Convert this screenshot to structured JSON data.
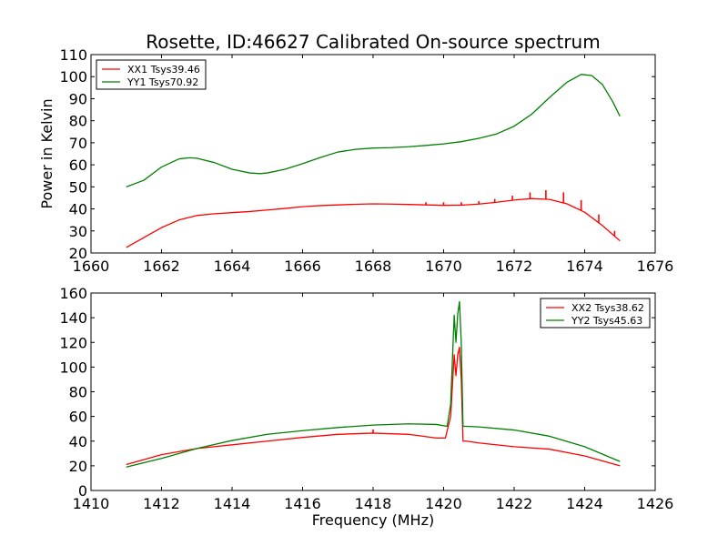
{
  "chart_data": [
    {
      "type": "line",
      "title": "Rosette, ID:46627 Calibrated On-source spectrum",
      "xlabel": "",
      "ylabel": "Power in Kelvin",
      "xlim": [
        1660,
        1676
      ],
      "ylim": [
        20,
        110
      ],
      "xticks": [
        1660,
        1662,
        1664,
        1666,
        1668,
        1670,
        1672,
        1674,
        1676
      ],
      "yticks": [
        20,
        30,
        40,
        50,
        60,
        70,
        80,
        90,
        100,
        110
      ],
      "grid": false,
      "legend_position": "top-left",
      "series": [
        {
          "name": "XX1 Tsys39.46",
          "color": "#ff0000",
          "x": [
            1661.0,
            1661.5,
            1662.0,
            1662.5,
            1663.0,
            1663.5,
            1664.0,
            1664.5,
            1665.0,
            1665.5,
            1666.0,
            1666.5,
            1667.0,
            1667.5,
            1668.0,
            1668.5,
            1669.0,
            1669.5,
            1670.0,
            1670.5,
            1671.0,
            1671.5,
            1672.0,
            1672.5,
            1673.0,
            1673.5,
            1674.0,
            1674.5,
            1675.0
          ],
          "y": [
            22.5,
            27,
            31.5,
            35,
            37,
            37.8,
            38.3,
            38.8,
            39.5,
            40.2,
            41,
            41.5,
            41.8,
            42.1,
            42.3,
            42.2,
            42,
            41.8,
            41.6,
            41.7,
            42.2,
            43,
            44,
            44.7,
            44.3,
            42.3,
            38.5,
            32.5,
            25.5
          ],
          "spikes": [
            {
              "x": 1669.5,
              "y": 43
            },
            {
              "x": 1670.0,
              "y": 43
            },
            {
              "x": 1670.5,
              "y": 43
            },
            {
              "x": 1671.0,
              "y": 43.5
            },
            {
              "x": 1671.45,
              "y": 44.5
            },
            {
              "x": 1671.95,
              "y": 46
            },
            {
              "x": 1672.45,
              "y": 47.5
            },
            {
              "x": 1672.9,
              "y": 48.5
            },
            {
              "x": 1673.4,
              "y": 47.5
            },
            {
              "x": 1673.9,
              "y": 44
            },
            {
              "x": 1674.4,
              "y": 37.5
            },
            {
              "x": 1674.85,
              "y": 30
            }
          ]
        },
        {
          "name": "YY1 Tsys70.92",
          "color": "#008000",
          "x": [
            1661.0,
            1661.5,
            1662.0,
            1662.5,
            1662.8,
            1663.0,
            1663.5,
            1664.0,
            1664.5,
            1664.8,
            1665.0,
            1665.5,
            1666.0,
            1666.5,
            1667.0,
            1667.5,
            1668.0,
            1668.5,
            1669.0,
            1669.5,
            1670.0,
            1670.5,
            1671.0,
            1671.5,
            1672.0,
            1672.5,
            1673.0,
            1673.5,
            1673.9,
            1674.2,
            1674.5,
            1674.8,
            1675.0
          ],
          "y": [
            50,
            53,
            59,
            62.7,
            63.2,
            63,
            61,
            58,
            56.3,
            56,
            56.3,
            58,
            60.5,
            63.3,
            65.8,
            67,
            67.6,
            67.8,
            68.2,
            68.8,
            69.5,
            70.5,
            72,
            74,
            77.5,
            83,
            90.5,
            97.5,
            101,
            100.5,
            96.5,
            88.5,
            82
          ]
        }
      ]
    },
    {
      "type": "line",
      "title": "",
      "xlabel": "Frequency (MHz)",
      "ylabel": "",
      "xlim": [
        1410,
        1426
      ],
      "ylim": [
        0,
        160
      ],
      "xticks": [
        1410,
        1412,
        1414,
        1416,
        1418,
        1420,
        1422,
        1424,
        1426
      ],
      "yticks": [
        0,
        20,
        40,
        60,
        80,
        100,
        120,
        140,
        160
      ],
      "grid": false,
      "legend_position": "top-right",
      "series": [
        {
          "name": "XX2 Tsys38.62",
          "color": "#ff0000",
          "x": [
            1411.0,
            1412.0,
            1413.0,
            1414.0,
            1415.0,
            1416.0,
            1417.0,
            1418.0,
            1419.0,
            1419.8,
            1420.05,
            1420.2,
            1420.3,
            1420.35,
            1420.4,
            1420.45,
            1420.5,
            1420.55,
            1420.65,
            1421.0,
            1422.0,
            1423.0,
            1424.0,
            1425.0
          ],
          "y": [
            21,
            29,
            34,
            37,
            40,
            43,
            45.5,
            46.5,
            45.5,
            42.5,
            42.5,
            60,
            110,
            93,
            110,
            116,
            90,
            40,
            40,
            38.5,
            35.5,
            33.5,
            28,
            20
          ],
          "spikes": [
            {
              "x": 1418.0,
              "y": 49.5
            }
          ]
        },
        {
          "name": "YY2 Tsys45.63",
          "color": "#008000",
          "x": [
            1411.0,
            1412.0,
            1413.0,
            1414.0,
            1415.0,
            1416.0,
            1417.0,
            1418.0,
            1419.0,
            1419.8,
            1420.1,
            1420.2,
            1420.3,
            1420.35,
            1420.4,
            1420.45,
            1420.5,
            1420.55,
            1420.65,
            1421.0,
            1422.0,
            1423.0,
            1424.0,
            1425.0
          ],
          "y": [
            19,
            26,
            34,
            40.5,
            45.5,
            48.5,
            51,
            53,
            54,
            53.5,
            52,
            70,
            142,
            120,
            143,
            153,
            120,
            52,
            52,
            51.5,
            49,
            44,
            35.5,
            23.5
          ]
        }
      ]
    }
  ]
}
